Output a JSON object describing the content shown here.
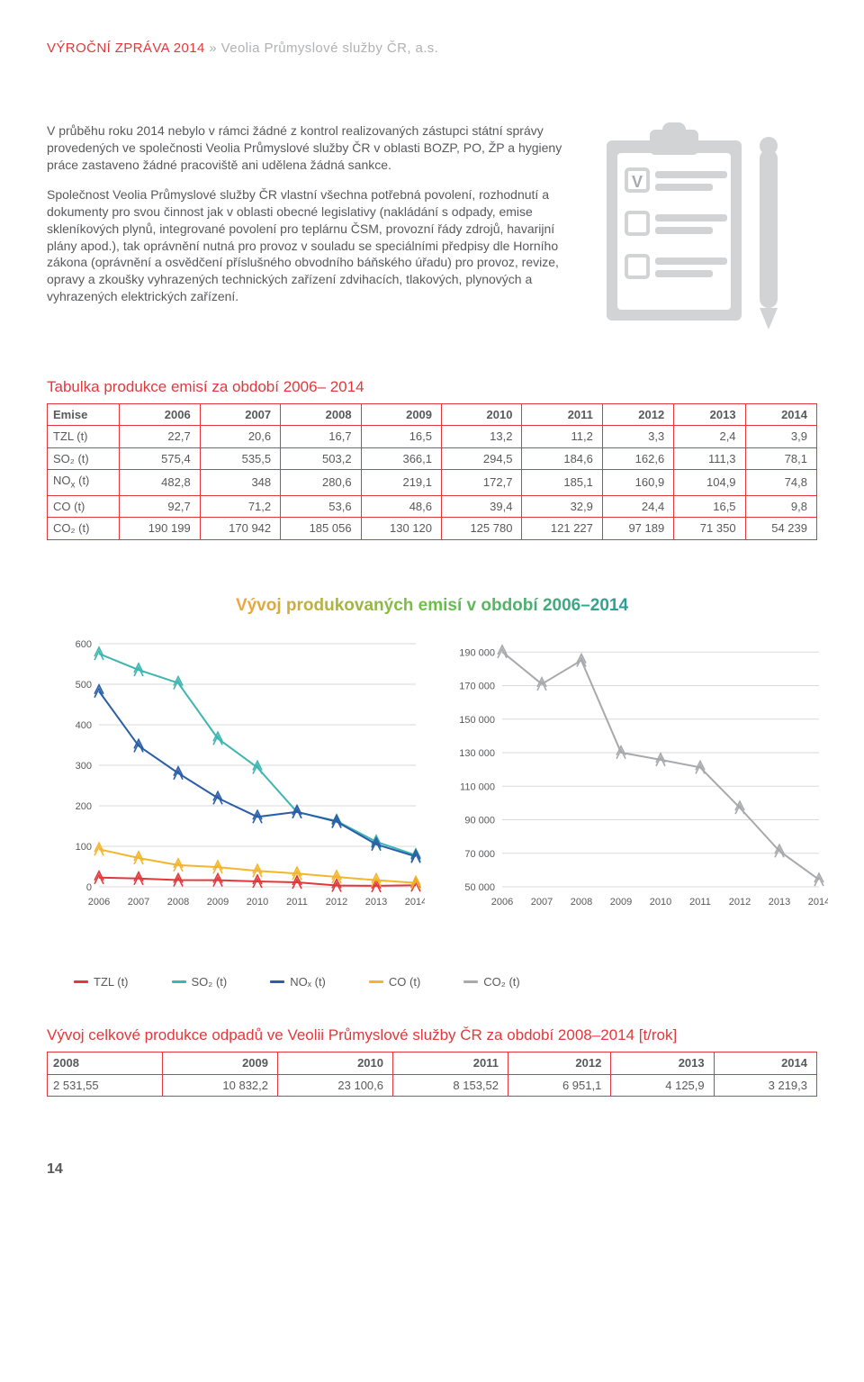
{
  "header": {
    "report": "VÝROČNÍ ZPRÁVA 2014",
    "separator": " » ",
    "company": "Veolia Průmyslové služby ČR, a.s."
  },
  "paragraphs": {
    "p1": "V průběhu roku 2014 nebylo v rámci žádné z kontrol realizovaných zástupci státní správy provedených ve společnosti Veolia Průmyslové služby ČR v oblasti BOZP, PO, ŽP a hygieny práce zastaveno žádné pracoviště ani udělena žádná sankce.",
    "p2": "Společnost Veolia Průmyslové služby ČR vlastní všechna potřebná povolení, rozhodnutí a dokumenty pro svou činnost jak v oblasti obecné legislativy (nakládání s odpady, emise skleníkových plynů, integrované povolení pro teplárnu ČSM, provozní řády zdrojů, havarijní plány apod.), tak oprávnění nutná pro provoz v souladu se speciálními předpisy dle Horního zákona (oprávnění a osvědčení příslušného obvodního báňského úřadu) pro provoz, revize, opravy a zkoušky vyhrazených technických zařízení zdvihacích, tlakových, plynových a vyhrazených elektrických zařízení."
  },
  "clipboard": {
    "fill": "#d1d3d4",
    "check": "#a7a9ac"
  },
  "emissions_table": {
    "title": "Tabulka produkce emisí za období 2006– 2014",
    "top_border": "#e1393b",
    "row_border": "#e1393b",
    "head_label": "Emise",
    "years": [
      "2006",
      "2007",
      "2008",
      "2009",
      "2010",
      "2011",
      "2012",
      "2013",
      "2014"
    ],
    "rows": [
      {
        "label": "TZL (t)",
        "cells": [
          "22,7",
          "20,6",
          "16,7",
          "16,5",
          "13,2",
          "11,2",
          "3,3",
          "2,4",
          "3,9"
        ]
      },
      {
        "label": "SO₂ (t)",
        "cells": [
          "575,4",
          "535,5",
          "503,2",
          "366,1",
          "294,5",
          "184,6",
          "162,6",
          "111,3",
          "78,1"
        ]
      },
      {
        "label_raw": "NOx (t)",
        "sub": "x",
        "pre": "NO",
        "post": " (t)",
        "cells": [
          "482,8",
          "348",
          "280,6",
          "219,1",
          "172,7",
          "185,1",
          "160,9",
          "104,9",
          "74,8"
        ]
      },
      {
        "label": "CO (t)",
        "cells": [
          "92,7",
          "71,2",
          "53,6",
          "48,6",
          "39,4",
          "32,9",
          "24,4",
          "16,5",
          "9,8"
        ]
      },
      {
        "label": "CO₂ (t)",
        "cells": [
          "190 199",
          "170 942",
          "185 056",
          "130 120",
          "125 780",
          "121 227",
          "97 189",
          "71 350",
          "54 239"
        ]
      }
    ]
  },
  "charts": {
    "title": "Vývoj produkovaných emisí v období 2006–2014",
    "x_labels": [
      "2006",
      "2007",
      "2008",
      "2009",
      "2010",
      "2011",
      "2012",
      "2013",
      "2014"
    ],
    "left": {
      "y_ticks": [
        0,
        100,
        200,
        300,
        400,
        500,
        600
      ],
      "ylim": [
        0,
        600
      ],
      "grid_color": "#d9dadb",
      "marker": {
        "shape": "double-chevron",
        "size": 8
      },
      "series": [
        {
          "name": "TZL (t)",
          "color": "#e1393b",
          "values": [
            22.7,
            20.6,
            16.7,
            16.5,
            13.2,
            11.2,
            3.3,
            2.4,
            3.9
          ]
        },
        {
          "name": "SO₂ (t)",
          "color": "#3eb5b1",
          "values": [
            575.4,
            535.5,
            503.2,
            366.1,
            294.5,
            184.6,
            162.6,
            111.3,
            78.1
          ]
        },
        {
          "name": "NOₓ (t)",
          "color": "#2a5ea6",
          "values": [
            482.8,
            348,
            280.6,
            219.1,
            172.7,
            185.1,
            160.9,
            104.9,
            74.8
          ]
        },
        {
          "name": "CO (t)",
          "color": "#f3b62b",
          "values": [
            92.7,
            71.2,
            53.6,
            48.6,
            39.4,
            32.9,
            24.4,
            16.5,
            9.8
          ]
        }
      ]
    },
    "right": {
      "y_ticks": [
        50000,
        70000,
        90000,
        110000,
        130000,
        150000,
        170000,
        190000
      ],
      "y_tick_labels": [
        "50 000",
        "70 000",
        "90 000",
        "110 000",
        "130 000",
        "150 000",
        "170 000",
        "190 000"
      ],
      "ylim": [
        50000,
        195000
      ],
      "grid_color": "#d9dadb",
      "marker": {
        "shape": "double-chevron",
        "size": 8
      },
      "series": [
        {
          "name": "CO₂ (t)",
          "color": "#a7a9ac",
          "values": [
            190199,
            170942,
            185056,
            130120,
            125780,
            121227,
            97189,
            71350,
            54239
          ]
        }
      ]
    },
    "legend": [
      {
        "label": "TZL (t)",
        "color": "#e1393b"
      },
      {
        "label": "SO₂ (t)",
        "color": "#3eb5b1"
      },
      {
        "label": "NOₓ (t)",
        "color": "#2a5ea6"
      },
      {
        "label": "CO (t)",
        "color": "#f3b62b"
      },
      {
        "label": "CO₂ (t)",
        "color": "#a7a9ac"
      }
    ]
  },
  "waste_table": {
    "title": "Vývoj celkové produkce odpadů ve Veolii Průmyslové služby ČR za období 2008–2014 [t/rok]",
    "border": "#e1393b",
    "years": [
      "2008",
      "2009",
      "2010",
      "2011",
      "2012",
      "2013",
      "2014"
    ],
    "values": [
      "2 531,55",
      "10 832,2",
      "23 100,6",
      "8 153,52",
      "6 951,1",
      "4 125,9",
      "3 219,3"
    ]
  },
  "page_number": "14"
}
